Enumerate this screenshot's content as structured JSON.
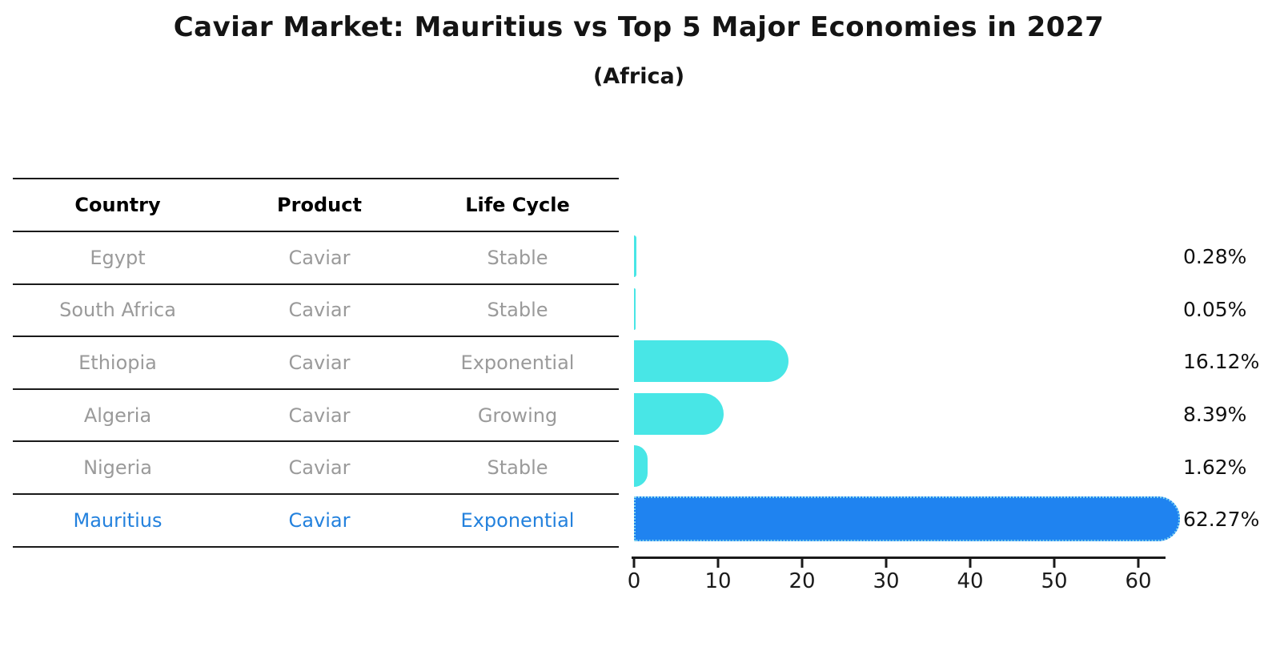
{
  "title": "Caviar Market: Mauritius vs Top 5 Major Economies in 2027",
  "subtitle": "(Africa)",
  "table": {
    "headers": [
      "Country",
      "Product",
      "Life Cycle"
    ],
    "rows": [
      {
        "country": "Egypt",
        "product": "Caviar",
        "life_cycle": "Stable",
        "highlight": false
      },
      {
        "country": "South Africa",
        "product": "Caviar",
        "life_cycle": "Stable",
        "highlight": false
      },
      {
        "country": "Ethiopia",
        "product": "Caviar",
        "life_cycle": "Exponential",
        "highlight": false
      },
      {
        "country": "Algeria",
        "product": "Caviar",
        "life_cycle": "Growing",
        "highlight": false
      },
      {
        "country": "Nigeria",
        "product": "Caviar",
        "life_cycle": "Stable",
        "highlight": false
      },
      {
        "country": "Mauritius",
        "product": "Caviar",
        "life_cycle": "Exponential",
        "highlight": true
      }
    ]
  },
  "chart_data": {
    "type": "bar",
    "orientation": "horizontal",
    "title": "Caviar Market: Mauritius vs Top 5 Major Economies in 2027 (Africa)",
    "categories": [
      "Egypt",
      "South Africa",
      "Ethiopia",
      "Algeria",
      "Nigeria",
      "Mauritius"
    ],
    "values": [
      0.28,
      0.05,
      16.12,
      8.39,
      1.62,
      62.27
    ],
    "value_labels": [
      "0.28%",
      "0.05%",
      "16.12%",
      "8.39%",
      "1.62%",
      "62.27%"
    ],
    "x_ticks": [
      0,
      10,
      20,
      30,
      40,
      50,
      60
    ],
    "xlim": [
      0,
      63.5
    ],
    "xlabel": "",
    "ylabel": "",
    "grid": false,
    "legend": false,
    "highlight_index": 5
  },
  "colors": {
    "bar": "#48e6e6",
    "highlight_bar": "#1f83f0",
    "highlight_border": "#7fd4f0",
    "gray_text": "#9a9a9a",
    "highlight_text": "#2381dd",
    "axis": "#1a1a1a"
  }
}
